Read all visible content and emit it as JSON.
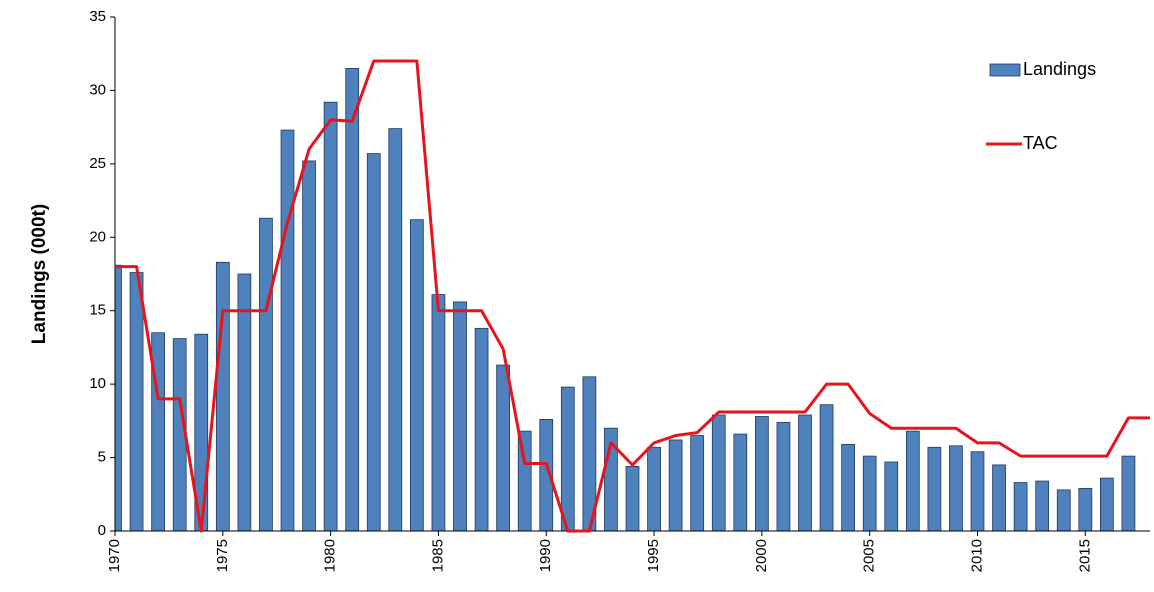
{
  "chart_data": {
    "type": "bar_line",
    "y_label": "Landings (000t)",
    "x": [
      1970,
      1971,
      1972,
      1973,
      1974,
      1975,
      1976,
      1977,
      1978,
      1979,
      1980,
      1981,
      1982,
      1983,
      1984,
      1985,
      1986,
      1987,
      1988,
      1989,
      1990,
      1991,
      1992,
      1993,
      1994,
      1995,
      1996,
      1997,
      1998,
      1999,
      2000,
      2001,
      2002,
      2003,
      2004,
      2005,
      2006,
      2007,
      2008,
      2009,
      2010,
      2011,
      2012,
      2013,
      2014,
      2015,
      2016,
      2017,
      2018
    ],
    "series": [
      {
        "name": "Landings",
        "type": "bar",
        "color": "#4f81bd",
        "values": [
          18.1,
          17.6,
          13.5,
          13.1,
          13.4,
          18.3,
          17.5,
          21.3,
          27.3,
          25.2,
          29.2,
          31.5,
          25.7,
          27.4,
          21.2,
          16.1,
          15.6,
          13.8,
          11.3,
          6.8,
          7.6,
          9.8,
          10.5,
          7.0,
          4.4,
          5.7,
          6.2,
          6.5,
          7.9,
          6.6,
          7.8,
          7.4,
          7.9,
          8.6,
          5.9,
          5.1,
          4.7,
          6.8,
          5.7,
          5.8,
          5.4,
          4.5,
          3.3,
          3.4,
          2.8,
          2.9,
          3.6,
          5.1,
          null
        ]
      },
      {
        "name": "TAC",
        "type": "line",
        "color": "#e8141b",
        "values": [
          18,
          18,
          9,
          9,
          0,
          15,
          15,
          15,
          21,
          26,
          28,
          27.9,
          32,
          32,
          32,
          15,
          15,
          15,
          12.4,
          4.6,
          4.6,
          0,
          0,
          6,
          4.5,
          6,
          6.5,
          6.7,
          8.1,
          8.1,
          8.1,
          8.1,
          8.1,
          10,
          10,
          8,
          7,
          7,
          7,
          7,
          6,
          6,
          5.1,
          5.1,
          5.1,
          5.1,
          5.1,
          7.7,
          7.7
        ]
      }
    ],
    "xlim": [
      1970,
      2018
    ],
    "xticks": [
      1970,
      1975,
      1980,
      1985,
      1990,
      1995,
      2000,
      2005,
      2010,
      2015
    ],
    "ylim": [
      0,
      35
    ],
    "yticks": [
      0,
      5,
      10,
      15,
      20,
      25,
      30,
      35
    ],
    "legend": "top-right"
  }
}
